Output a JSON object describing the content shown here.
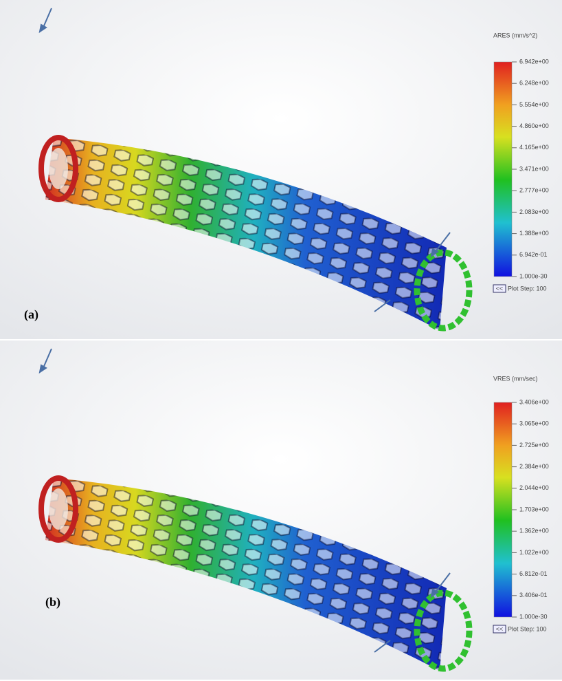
{
  "panels": [
    {
      "label": "(a)",
      "legend": {
        "title": "ARES (mm/s^2)",
        "ticks": [
          "6.942e+00",
          "6.248e+00",
          "5.554e+00",
          "4.860e+00",
          "4.165e+00",
          "3.471e+00",
          "2.777e+00",
          "2.083e+00",
          "1.388e+00",
          "6.942e-01",
          "1.000e-30"
        ]
      },
      "plot_step_button": "<<",
      "plot_step": "Plot Step: 100"
    },
    {
      "label": "(b)",
      "legend": {
        "title": "VRES (mm/sec)",
        "ticks": [
          "3.406e+00",
          "3.065e+00",
          "2.725e+00",
          "2.384e+00",
          "2.044e+00",
          "1.703e+00",
          "1.362e+00",
          "1.022e+00",
          "6.812e-01",
          "3.406e-01",
          "1.000e-30"
        ]
      },
      "plot_step_button": "<<",
      "plot_step": "Plot Step: 100"
    }
  ]
}
